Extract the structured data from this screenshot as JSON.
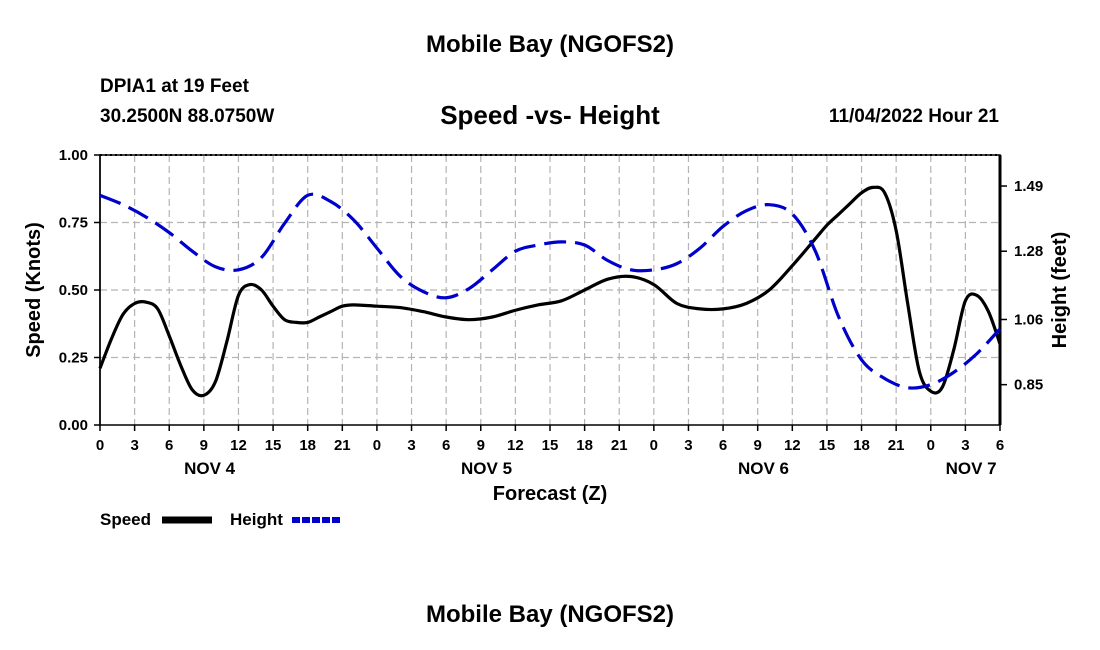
{
  "page": {
    "title": "Mobile Bay (NGOFS2)",
    "bottom_title": "Mobile Bay (NGOFS2)",
    "station_line": "DPIA1 at 19 Feet",
    "coords": "30.2500N  88.0750W",
    "forecast_time": "11/04/2022 Hour 21"
  },
  "colors": {
    "speed": "#000000",
    "height": "#0000cc",
    "grid": "#b4b4b4"
  },
  "chart_data": {
    "type": "line",
    "title": "Speed -vs- Height",
    "xlabel": "Forecast (Z)",
    "ylabel": "Speed (Knots)",
    "y2label": "Height (feet)",
    "x_unit": "hours since NOV 4 00Z",
    "xlim": [
      0,
      78
    ],
    "ylim": [
      0,
      1.0
    ],
    "y2lim": [
      0.72,
      1.59
    ],
    "x_ticks": [
      0,
      3,
      6,
      9,
      12,
      15,
      18,
      21,
      24,
      27,
      30,
      33,
      36,
      39,
      42,
      45,
      48,
      51,
      54,
      57,
      60,
      63,
      66,
      69,
      72,
      75,
      78
    ],
    "x_tick_labels": [
      "0",
      "3",
      "6",
      "9",
      "12",
      "15",
      "18",
      "21",
      "0",
      "3",
      "6",
      "9",
      "12",
      "15",
      "18",
      "21",
      "0",
      "3",
      "6",
      "9",
      "12",
      "15",
      "18",
      "21",
      "0",
      "3",
      "6"
    ],
    "date_labels": [
      {
        "x": 9.5,
        "label": "NOV 4"
      },
      {
        "x": 33.5,
        "label": "NOV 5"
      },
      {
        "x": 57.5,
        "label": "NOV 6"
      },
      {
        "x": 75.5,
        "label": "NOV 7"
      }
    ],
    "y_ticks": [
      0,
      0.25,
      0.5,
      0.75,
      1.0
    ],
    "y_tick_labels": [
      "0.00",
      "0.25",
      "0.50",
      "0.75",
      "1.00"
    ],
    "y2_ticks": [
      0.85,
      1.06,
      1.28,
      1.49
    ],
    "y2_tick_labels": [
      "0.85",
      "1.06",
      "1.28",
      "1.49"
    ],
    "legend": [
      {
        "name": "Speed",
        "style": "solid"
      },
      {
        "name": "Height",
        "style": "dashed"
      }
    ],
    "series": [
      {
        "name": "Speed",
        "axis": "left",
        "x": [
          0,
          1,
          2,
          3,
          4,
          5,
          6,
          7,
          8,
          9,
          10,
          11,
          12,
          13,
          14,
          15,
          16,
          17,
          18,
          19,
          20,
          21,
          22,
          24,
          26,
          28,
          30,
          32,
          34,
          36,
          38,
          40,
          42,
          44,
          46,
          48,
          50,
          52,
          54,
          56,
          58,
          60,
          62,
          63,
          64,
          65,
          66,
          67,
          68,
          69,
          70,
          71,
          72,
          73,
          74,
          75,
          76,
          77,
          78
        ],
        "values": [
          0.21,
          0.32,
          0.41,
          0.45,
          0.455,
          0.43,
          0.33,
          0.22,
          0.13,
          0.11,
          0.16,
          0.31,
          0.48,
          0.52,
          0.5,
          0.44,
          0.39,
          0.38,
          0.38,
          0.4,
          0.42,
          0.44,
          0.445,
          0.44,
          0.435,
          0.42,
          0.4,
          0.39,
          0.4,
          0.425,
          0.445,
          0.46,
          0.5,
          0.54,
          0.55,
          0.52,
          0.45,
          0.43,
          0.43,
          0.45,
          0.5,
          0.59,
          0.69,
          0.74,
          0.78,
          0.82,
          0.86,
          0.88,
          0.86,
          0.72,
          0.45,
          0.2,
          0.125,
          0.14,
          0.28,
          0.46,
          0.48,
          0.42,
          0.3
        ]
      },
      {
        "name": "Height",
        "axis": "right",
        "x": [
          0,
          2,
          4,
          6,
          8,
          10,
          12,
          14,
          16,
          18,
          20,
          22,
          24,
          26,
          28,
          30,
          32,
          34,
          36,
          38,
          40,
          42,
          44,
          46,
          48,
          50,
          52,
          54,
          56,
          58,
          60,
          62,
          64,
          66,
          68,
          70,
          72,
          74,
          76,
          78
        ],
        "values": [
          1.46,
          1.43,
          1.39,
          1.34,
          1.28,
          1.23,
          1.22,
          1.26,
          1.37,
          1.46,
          1.44,
          1.38,
          1.29,
          1.2,
          1.15,
          1.13,
          1.16,
          1.22,
          1.28,
          1.3,
          1.31,
          1.3,
          1.25,
          1.22,
          1.22,
          1.24,
          1.29,
          1.36,
          1.41,
          1.43,
          1.4,
          1.28,
          1.07,
          0.93,
          0.87,
          0.84,
          0.85,
          0.89,
          0.95,
          1.03
        ]
      }
    ]
  }
}
